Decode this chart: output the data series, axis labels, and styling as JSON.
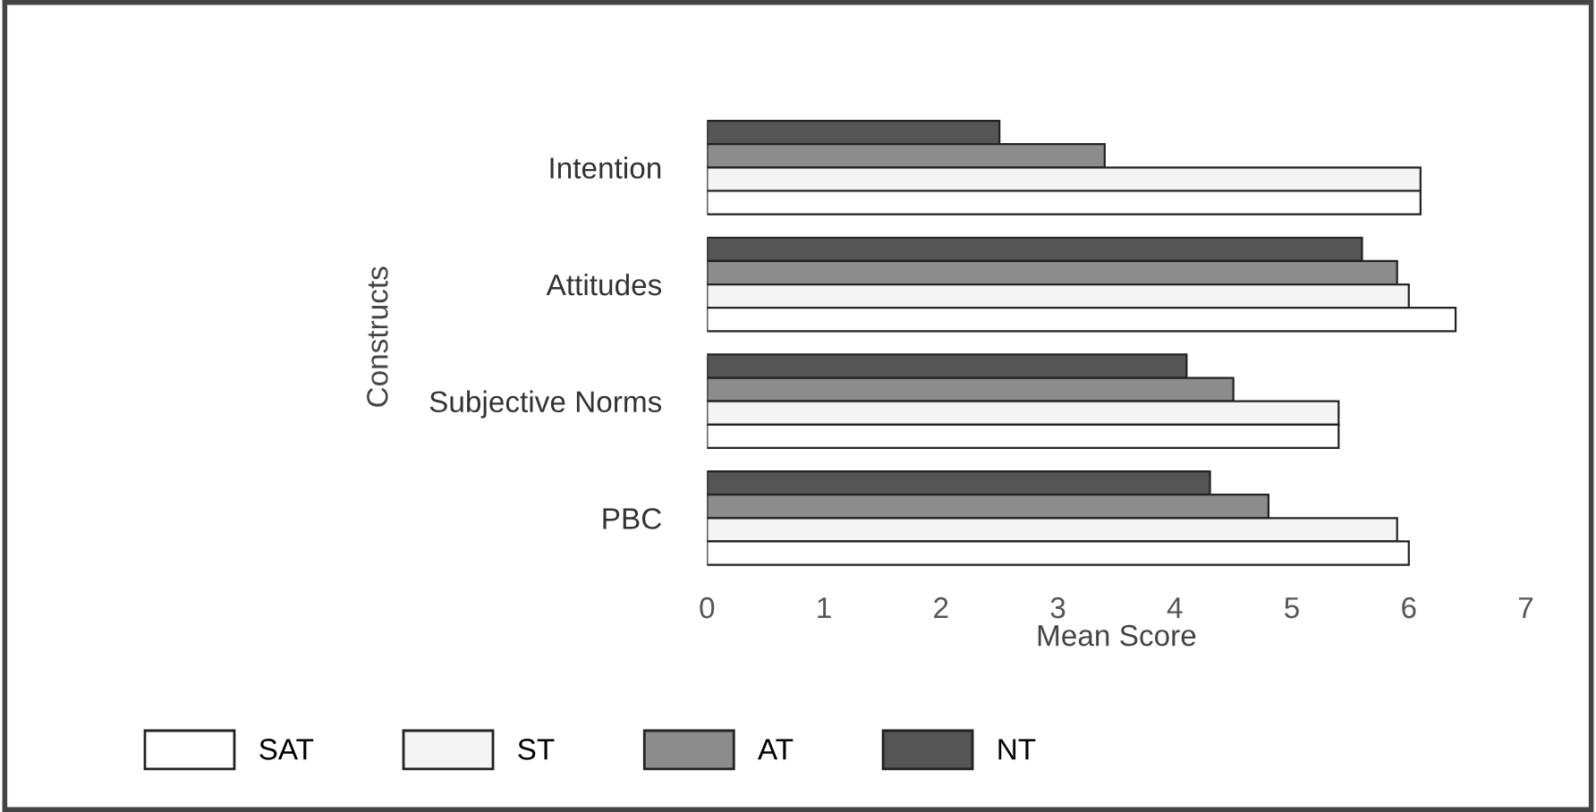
{
  "chart_data": {
    "type": "bar",
    "orientation": "horizontal",
    "xlabel": "Mean Score",
    "ylabel": "Constructs",
    "categories": [
      "Intention",
      "Attitudes",
      "Subjective Norms",
      "PBC"
    ],
    "series": [
      {
        "name": "NT",
        "color": "#555555",
        "values": [
          2.5,
          5.6,
          4.1,
          4.3
        ]
      },
      {
        "name": "AT",
        "color": "#8c8c8c",
        "values": [
          3.4,
          5.9,
          4.5,
          4.8
        ]
      },
      {
        "name": "ST",
        "color": "#f4f4f4",
        "values": [
          6.1,
          6.0,
          5.4,
          5.9
        ]
      },
      {
        "name": "SAT",
        "color": "#ffffff",
        "values": [
          6.1,
          6.4,
          5.4,
          6.0
        ]
      }
    ],
    "xlim": [
      0,
      7
    ],
    "xticks": [
      0,
      1,
      2,
      3,
      4,
      5,
      6,
      7
    ],
    "grid": false,
    "legend": "bottom"
  }
}
